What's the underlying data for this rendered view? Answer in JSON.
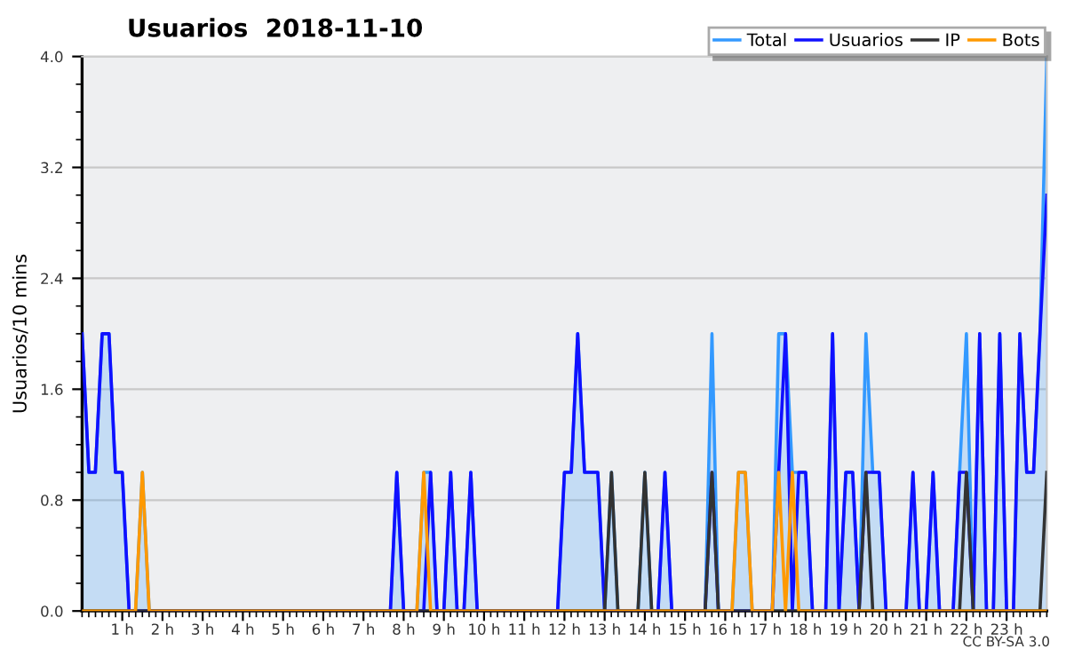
{
  "chart_data": {
    "type": "line",
    "title": "Usuarios  2018-11-10",
    "ylabel": "Usuarios/10 mins",
    "annotations": [
      "CC BY-SA 3.0"
    ],
    "x": [
      0,
      0.17,
      0.33,
      0.5,
      0.67,
      0.83,
      1,
      1.17,
      1.33,
      1.5,
      1.67,
      1.83,
      2,
      2.17,
      2.33,
      2.5,
      2.67,
      2.83,
      3,
      3.17,
      3.33,
      3.5,
      3.67,
      3.83,
      4,
      4.17,
      4.33,
      4.5,
      4.67,
      4.83,
      5,
      5.17,
      5.33,
      5.5,
      5.67,
      5.83,
      6,
      6.17,
      6.33,
      6.5,
      6.67,
      6.83,
      7,
      7.17,
      7.33,
      7.5,
      7.67,
      7.83,
      8,
      8.17,
      8.33,
      8.5,
      8.67,
      8.83,
      9,
      9.17,
      9.33,
      9.5,
      9.67,
      9.83,
      10,
      10.17,
      10.33,
      10.5,
      10.67,
      10.83,
      11,
      11.17,
      11.33,
      11.5,
      11.67,
      11.83,
      12,
      12.17,
      12.33,
      12.5,
      12.67,
      12.83,
      13,
      13.17,
      13.33,
      13.5,
      13.67,
      13.83,
      14,
      14.17,
      14.33,
      14.5,
      14.67,
      14.83,
      15,
      15.17,
      15.33,
      15.5,
      15.67,
      15.83,
      16,
      16.17,
      16.33,
      16.5,
      16.67,
      16.83,
      17,
      17.17,
      17.33,
      17.5,
      17.67,
      17.83,
      18,
      18.17,
      18.33,
      18.5,
      18.67,
      18.83,
      19,
      19.17,
      19.33,
      19.5,
      19.67,
      19.83,
      20,
      20.17,
      20.33,
      20.5,
      20.67,
      20.83,
      21,
      21.17,
      21.33,
      21.5,
      21.67,
      21.83,
      22,
      22.17,
      22.33,
      22.5,
      22.67,
      22.83,
      23,
      23.17,
      23.33,
      23.5,
      23.67,
      23.83,
      24
    ],
    "series": [
      {
        "name": "Total",
        "type": "area",
        "color": "#3399ff",
        "values": [
          2,
          1,
          1,
          2,
          2,
          1,
          1,
          0,
          0,
          1,
          0,
          0,
          0,
          0,
          0,
          0,
          0,
          0,
          0,
          0,
          0,
          0,
          0,
          0,
          0,
          0,
          0,
          0,
          0,
          0,
          0,
          0,
          0,
          0,
          0,
          0,
          0,
          0,
          0,
          0,
          0,
          0,
          0,
          0,
          0,
          0,
          0,
          1,
          0,
          0,
          0,
          1,
          1,
          0,
          0,
          1,
          0,
          0,
          1,
          0,
          0,
          0,
          0,
          0,
          0,
          0,
          0,
          0,
          0,
          0,
          0,
          0,
          1,
          1,
          2,
          1,
          1,
          1,
          0,
          1,
          0,
          0,
          0,
          0,
          1,
          0,
          0,
          1,
          0,
          0,
          0,
          0,
          0,
          0,
          2,
          0,
          0,
          0,
          1,
          1,
          0,
          0,
          0,
          0,
          2,
          2,
          1,
          1,
          1,
          0,
          0,
          0,
          2,
          0,
          1,
          1,
          0,
          2,
          1,
          1,
          0,
          0,
          0,
          0,
          1,
          0,
          0,
          1,
          0,
          0,
          0,
          1,
          2,
          0,
          2,
          0,
          0,
          2,
          0,
          0,
          2,
          1,
          1,
          2,
          4
        ]
      },
      {
        "name": "Usuarios",
        "color": "#1010ff",
        "values": [
          2,
          1,
          1,
          2,
          2,
          1,
          1,
          0,
          0,
          0,
          0,
          0,
          0,
          0,
          0,
          0,
          0,
          0,
          0,
          0,
          0,
          0,
          0,
          0,
          0,
          0,
          0,
          0,
          0,
          0,
          0,
          0,
          0,
          0,
          0,
          0,
          0,
          0,
          0,
          0,
          0,
          0,
          0,
          0,
          0,
          0,
          0,
          1,
          0,
          0,
          0,
          0,
          1,
          0,
          0,
          1,
          0,
          0,
          1,
          0,
          0,
          0,
          0,
          0,
          0,
          0,
          0,
          0,
          0,
          0,
          0,
          0,
          1,
          1,
          2,
          1,
          1,
          1,
          0,
          0,
          0,
          0,
          0,
          0,
          0,
          0,
          0,
          1,
          0,
          0,
          0,
          0,
          0,
          0,
          1,
          0,
          0,
          0,
          0,
          0,
          0,
          0,
          0,
          0,
          1,
          2,
          0,
          1,
          1,
          0,
          0,
          0,
          2,
          0,
          1,
          1,
          0,
          1,
          1,
          1,
          0,
          0,
          0,
          0,
          1,
          0,
          0,
          1,
          0,
          0,
          0,
          1,
          1,
          0,
          2,
          0,
          0,
          2,
          0,
          0,
          2,
          1,
          1,
          2,
          3
        ]
      },
      {
        "name": "IP",
        "color": "#333333",
        "values": [
          0,
          0,
          0,
          0,
          0,
          0,
          0,
          0,
          0,
          0,
          0,
          0,
          0,
          0,
          0,
          0,
          0,
          0,
          0,
          0,
          0,
          0,
          0,
          0,
          0,
          0,
          0,
          0,
          0,
          0,
          0,
          0,
          0,
          0,
          0,
          0,
          0,
          0,
          0,
          0,
          0,
          0,
          0,
          0,
          0,
          0,
          0,
          0,
          0,
          0,
          0,
          0,
          0,
          0,
          0,
          0,
          0,
          0,
          0,
          0,
          0,
          0,
          0,
          0,
          0,
          0,
          0,
          0,
          0,
          0,
          0,
          0,
          0,
          0,
          0,
          0,
          0,
          0,
          0,
          1,
          0,
          0,
          0,
          0,
          1,
          0,
          0,
          0,
          0,
          0,
          0,
          0,
          0,
          0,
          1,
          0,
          0,
          0,
          0,
          0,
          0,
          0,
          0,
          0,
          0,
          0,
          0,
          0,
          0,
          0,
          0,
          0,
          0,
          0,
          0,
          0,
          0,
          1,
          0,
          0,
          0,
          0,
          0,
          0,
          0,
          0,
          0,
          0,
          0,
          0,
          0,
          0,
          1,
          0,
          0,
          0,
          0,
          0,
          0,
          0,
          0,
          0,
          0,
          0,
          1
        ]
      },
      {
        "name": "Bots",
        "color": "#ff9900",
        "values": [
          0,
          0,
          0,
          0,
          0,
          0,
          0,
          0,
          0,
          1,
          0,
          0,
          0,
          0,
          0,
          0,
          0,
          0,
          0,
          0,
          0,
          0,
          0,
          0,
          0,
          0,
          0,
          0,
          0,
          0,
          0,
          0,
          0,
          0,
          0,
          0,
          0,
          0,
          0,
          0,
          0,
          0,
          0,
          0,
          0,
          0,
          0,
          0,
          0,
          0,
          0,
          1,
          0,
          0,
          0,
          0,
          0,
          0,
          0,
          0,
          0,
          0,
          0,
          0,
          0,
          0,
          0,
          0,
          0,
          0,
          0,
          0,
          0,
          0,
          0,
          0,
          0,
          0,
          0,
          0,
          0,
          0,
          0,
          0,
          0,
          0,
          0,
          0,
          0,
          0,
          0,
          0,
          0,
          0,
          0,
          0,
          0,
          0,
          1,
          1,
          0,
          0,
          0,
          0,
          1,
          0,
          1,
          0,
          0,
          0,
          0,
          0,
          0,
          0,
          0,
          0,
          0,
          0,
          0,
          0,
          0,
          0,
          0,
          0,
          0,
          0,
          0,
          0,
          0,
          0,
          0,
          0,
          0,
          0,
          0,
          0,
          0,
          0,
          0,
          0,
          0,
          0,
          0,
          0,
          0
        ]
      }
    ],
    "xlim": [
      0,
      24
    ],
    "xticks": [
      {
        "value": 1,
        "label": "1 h"
      },
      {
        "value": 2,
        "label": "2 h"
      },
      {
        "value": 3,
        "label": "3 h"
      },
      {
        "value": 4,
        "label": "4 h"
      },
      {
        "value": 5,
        "label": "5 h"
      },
      {
        "value": 6,
        "label": "6 h"
      },
      {
        "value": 7,
        "label": "7 h"
      },
      {
        "value": 8,
        "label": "8 h"
      },
      {
        "value": 9,
        "label": "9 h"
      },
      {
        "value": 10,
        "label": "10 h"
      },
      {
        "value": 11,
        "label": "11 h"
      },
      {
        "value": 12,
        "label": "12 h"
      },
      {
        "value": 13,
        "label": "13 h"
      },
      {
        "value": 14,
        "label": "14 h"
      },
      {
        "value": 15,
        "label": "15 h"
      },
      {
        "value": 16,
        "label": "16 h"
      },
      {
        "value": 17,
        "label": "17 h"
      },
      {
        "value": 18,
        "label": "18 h"
      },
      {
        "value": 19,
        "label": "19 h"
      },
      {
        "value": 20,
        "label": "20 h"
      },
      {
        "value": 21,
        "label": "21 h"
      },
      {
        "value": 22,
        "label": "22 h"
      },
      {
        "value": 23,
        "label": "23 h"
      }
    ],
    "ylim": [
      0,
      4
    ],
    "yticks": [
      {
        "value": 0,
        "label": "0.0"
      },
      {
        "value": 0.8,
        "label": "0.8"
      },
      {
        "value": 1.6,
        "label": "1.6"
      },
      {
        "value": 2.4,
        "label": "2.4"
      },
      {
        "value": 3.2,
        "label": "3.2"
      },
      {
        "value": 4,
        "label": "4.0"
      }
    ],
    "grid": "y",
    "legend": "top right"
  }
}
